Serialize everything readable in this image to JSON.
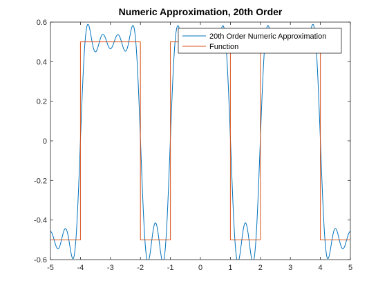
{
  "chart_data": {
    "type": "line",
    "title": "Numeric Approximation, 20th Order",
    "xlabel": "",
    "ylabel": "",
    "xlim": [
      -5,
      5
    ],
    "ylim": [
      -0.6,
      0.6
    ],
    "xticks": [
      -5,
      -4,
      -3,
      -2,
      -1,
      0,
      1,
      2,
      3,
      4,
      5
    ],
    "yticks": [
      -0.6,
      -0.4,
      -0.2,
      0,
      0.2,
      0.4,
      0.6
    ],
    "xtick_labels": [
      "-5",
      "-4",
      "-3",
      "-2",
      "-1",
      "0",
      "1",
      "2",
      "3",
      "4",
      "5"
    ],
    "ytick_labels": [
      "-0.6",
      "-0.4",
      "-0.2",
      "0",
      "0.2",
      "0.4",
      "0.6"
    ],
    "grid": false,
    "legend_position": "top-right",
    "series": [
      {
        "name": "20th Order Numeric Approximation",
        "color": "#0072BD",
        "style": "fourier-approximation",
        "order": 20,
        "segments": [
          {
            "x": [
              -5,
              -4
            ],
            "level": -0.5
          },
          {
            "x": [
              -4,
              -2
            ],
            "level": 0.5
          },
          {
            "x": [
              -2,
              -1
            ],
            "level": -0.5
          },
          {
            "x": [
              -1,
              1
            ],
            "level": 0.5
          },
          {
            "x": [
              1,
              2
            ],
            "level": -0.5
          },
          {
            "x": [
              2,
              4
            ],
            "level": 0.5
          },
          {
            "x": [
              4,
              5
            ],
            "level": -0.5
          }
        ]
      },
      {
        "name": "Function",
        "color": "#D95319",
        "x": [
          -5,
          -4,
          -4,
          -2,
          -2,
          -1,
          -1,
          1,
          1,
          2,
          2,
          4,
          4,
          5
        ],
        "y": [
          -0.5,
          -0.5,
          0.5,
          0.5,
          -0.5,
          -0.5,
          0.5,
          0.5,
          -0.5,
          -0.5,
          0.5,
          0.5,
          -0.5,
          -0.5
        ]
      }
    ]
  }
}
